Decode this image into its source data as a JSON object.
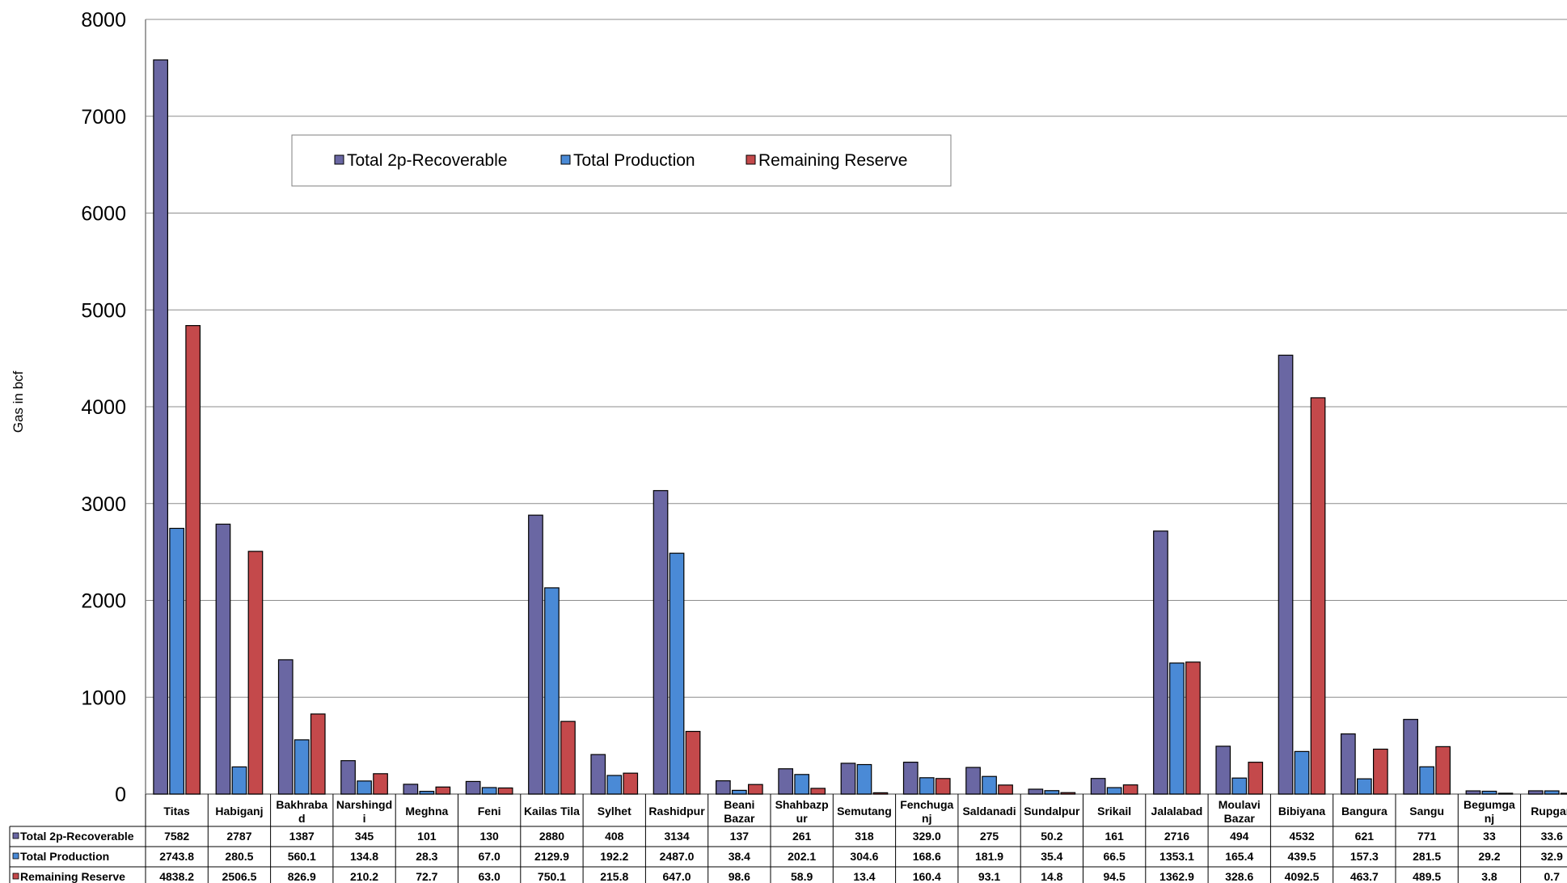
{
  "chart_data": {
    "type": "bar",
    "title": "",
    "xlabel": "",
    "ylabel": "Gas in bcf",
    "ylim": [
      0,
      8000
    ],
    "yticks": [
      0,
      1000,
      2000,
      3000,
      4000,
      5000,
      6000,
      7000,
      8000
    ],
    "grid": true,
    "legend_position": "top",
    "categories": [
      "Titas",
      "Habiganj",
      "Bakhrabad",
      "Narshingdi",
      "Meghna",
      "Feni",
      "Kailas Tila",
      "Sylhet",
      "Rashidpur",
      "Beani Bazar",
      "Shahbazpur",
      "Semutang",
      "Fenchuganj",
      "Saldanadi",
      "Sundalpur",
      "Srikail",
      "Jalalabad",
      "Moulavi Bazar",
      "Bibiyana",
      "Bangura",
      "Sangu",
      "Begumganj",
      "Rupganj"
    ],
    "category_labels": [
      [
        "Titas"
      ],
      [
        "Habiganj"
      ],
      [
        "Bakhraba",
        "d"
      ],
      [
        "Narshingd",
        "i"
      ],
      [
        "Meghna"
      ],
      [
        "Feni"
      ],
      [
        "Kailas Tila"
      ],
      [
        "Sylhet"
      ],
      [
        "Rashidpur"
      ],
      [
        "Beani",
        "Bazar"
      ],
      [
        "Shahbazp",
        "ur"
      ],
      [
        "Semutang"
      ],
      [
        "Fenchuga",
        "nj"
      ],
      [
        "Saldanadi"
      ],
      [
        "Sundalpur"
      ],
      [
        "Srikail"
      ],
      [
        "Jalalabad"
      ],
      [
        "Moulavi",
        "Bazar"
      ],
      [
        "Bibiyana"
      ],
      [
        "Bangura"
      ],
      [
        "Sangu"
      ],
      [
        "Begumga",
        "nj"
      ],
      [
        "Rupgan"
      ]
    ],
    "series": [
      {
        "name": "Total 2p-Recoverable",
        "color": "#6a67a3",
        "values": [
          7582,
          2787,
          1387,
          345,
          101,
          130,
          2880,
          408,
          3134,
          137,
          261,
          318,
          329.0,
          275,
          50.2,
          161,
          2716,
          494,
          4532,
          621,
          771,
          33,
          33.6
        ],
        "labels": [
          "7582",
          "2787",
          "1387",
          "345",
          "101",
          "130",
          "2880",
          "408",
          "3134",
          "137",
          "261",
          "318",
          "329.0",
          "275",
          "50.2",
          "161",
          "2716",
          "494",
          "4532",
          "621",
          "771",
          "33",
          "33.6"
        ]
      },
      {
        "name": "Total Production",
        "color": "#4a8ad6",
        "values": [
          2743.8,
          280.5,
          560.1,
          134.8,
          28.3,
          67.0,
          2129.9,
          192.2,
          2487.0,
          38.4,
          202.1,
          304.6,
          168.6,
          181.9,
          35.4,
          66.5,
          1353.1,
          165.4,
          439.5,
          157.3,
          281.5,
          29.2,
          32.9
        ],
        "labels": [
          "2743.8",
          "280.5",
          "560.1",
          "134.8",
          "28.3",
          "67.0",
          "2129.9",
          "192.2",
          "2487.0",
          "38.4",
          "202.1",
          "304.6",
          "168.6",
          "181.9",
          "35.4",
          "66.5",
          "1353.1",
          "165.4",
          "439.5",
          "157.3",
          "281.5",
          "29.2",
          "32.9"
        ]
      },
      {
        "name": "Remaining Reserve",
        "color": "#c4494b",
        "values": [
          4838.2,
          2506.5,
          826.9,
          210.2,
          72.7,
          63.0,
          750.1,
          215.8,
          647.0,
          98.6,
          58.9,
          13.4,
          160.4,
          93.1,
          14.8,
          94.5,
          1362.9,
          328.6,
          4092.5,
          463.7,
          489.5,
          3.8,
          0.7
        ],
        "labels": [
          "4838.2",
          "2506.5",
          "826.9",
          "210.2",
          "72.7",
          "63.0",
          "750.1",
          "215.8",
          "647.0",
          "98.6",
          "58.9",
          "13.4",
          "160.4",
          "93.1",
          "14.8",
          "94.5",
          "1362.9",
          "328.6",
          "4092.5",
          "463.7",
          "489.5",
          "3.8",
          "0.7"
        ]
      }
    ]
  }
}
